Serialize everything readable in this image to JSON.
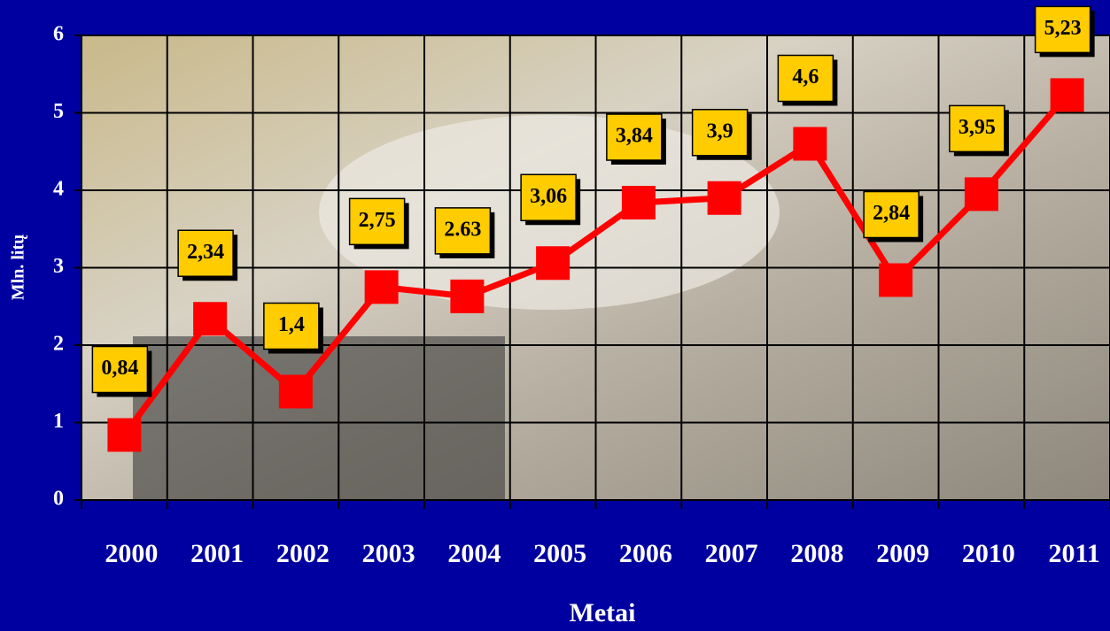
{
  "chart_data": {
    "type": "line",
    "x_label": "Metai",
    "y_label": "Mln. litų",
    "categories": [
      "2000",
      "2001",
      "2002",
      "2003",
      "2004",
      "2005",
      "2006",
      "2007",
      "2008",
      "2009",
      "2010",
      "2011"
    ],
    "values": [
      0.84,
      2.34,
      1.4,
      2.75,
      2.63,
      3.06,
      3.84,
      3.9,
      4.6,
      2.84,
      3.95,
      5.23
    ],
    "value_labels": [
      "0,84",
      "2,34",
      "1,4",
      "2,75",
      "2.63",
      "3,06",
      "3,84",
      "3,9",
      "4,6",
      "2,84",
      "3,95",
      "5,23"
    ],
    "color": "#ff0000",
    "ylim": [
      0,
      6
    ],
    "yticks": [
      0,
      1,
      2,
      3,
      4,
      5,
      6
    ],
    "grid": true
  }
}
